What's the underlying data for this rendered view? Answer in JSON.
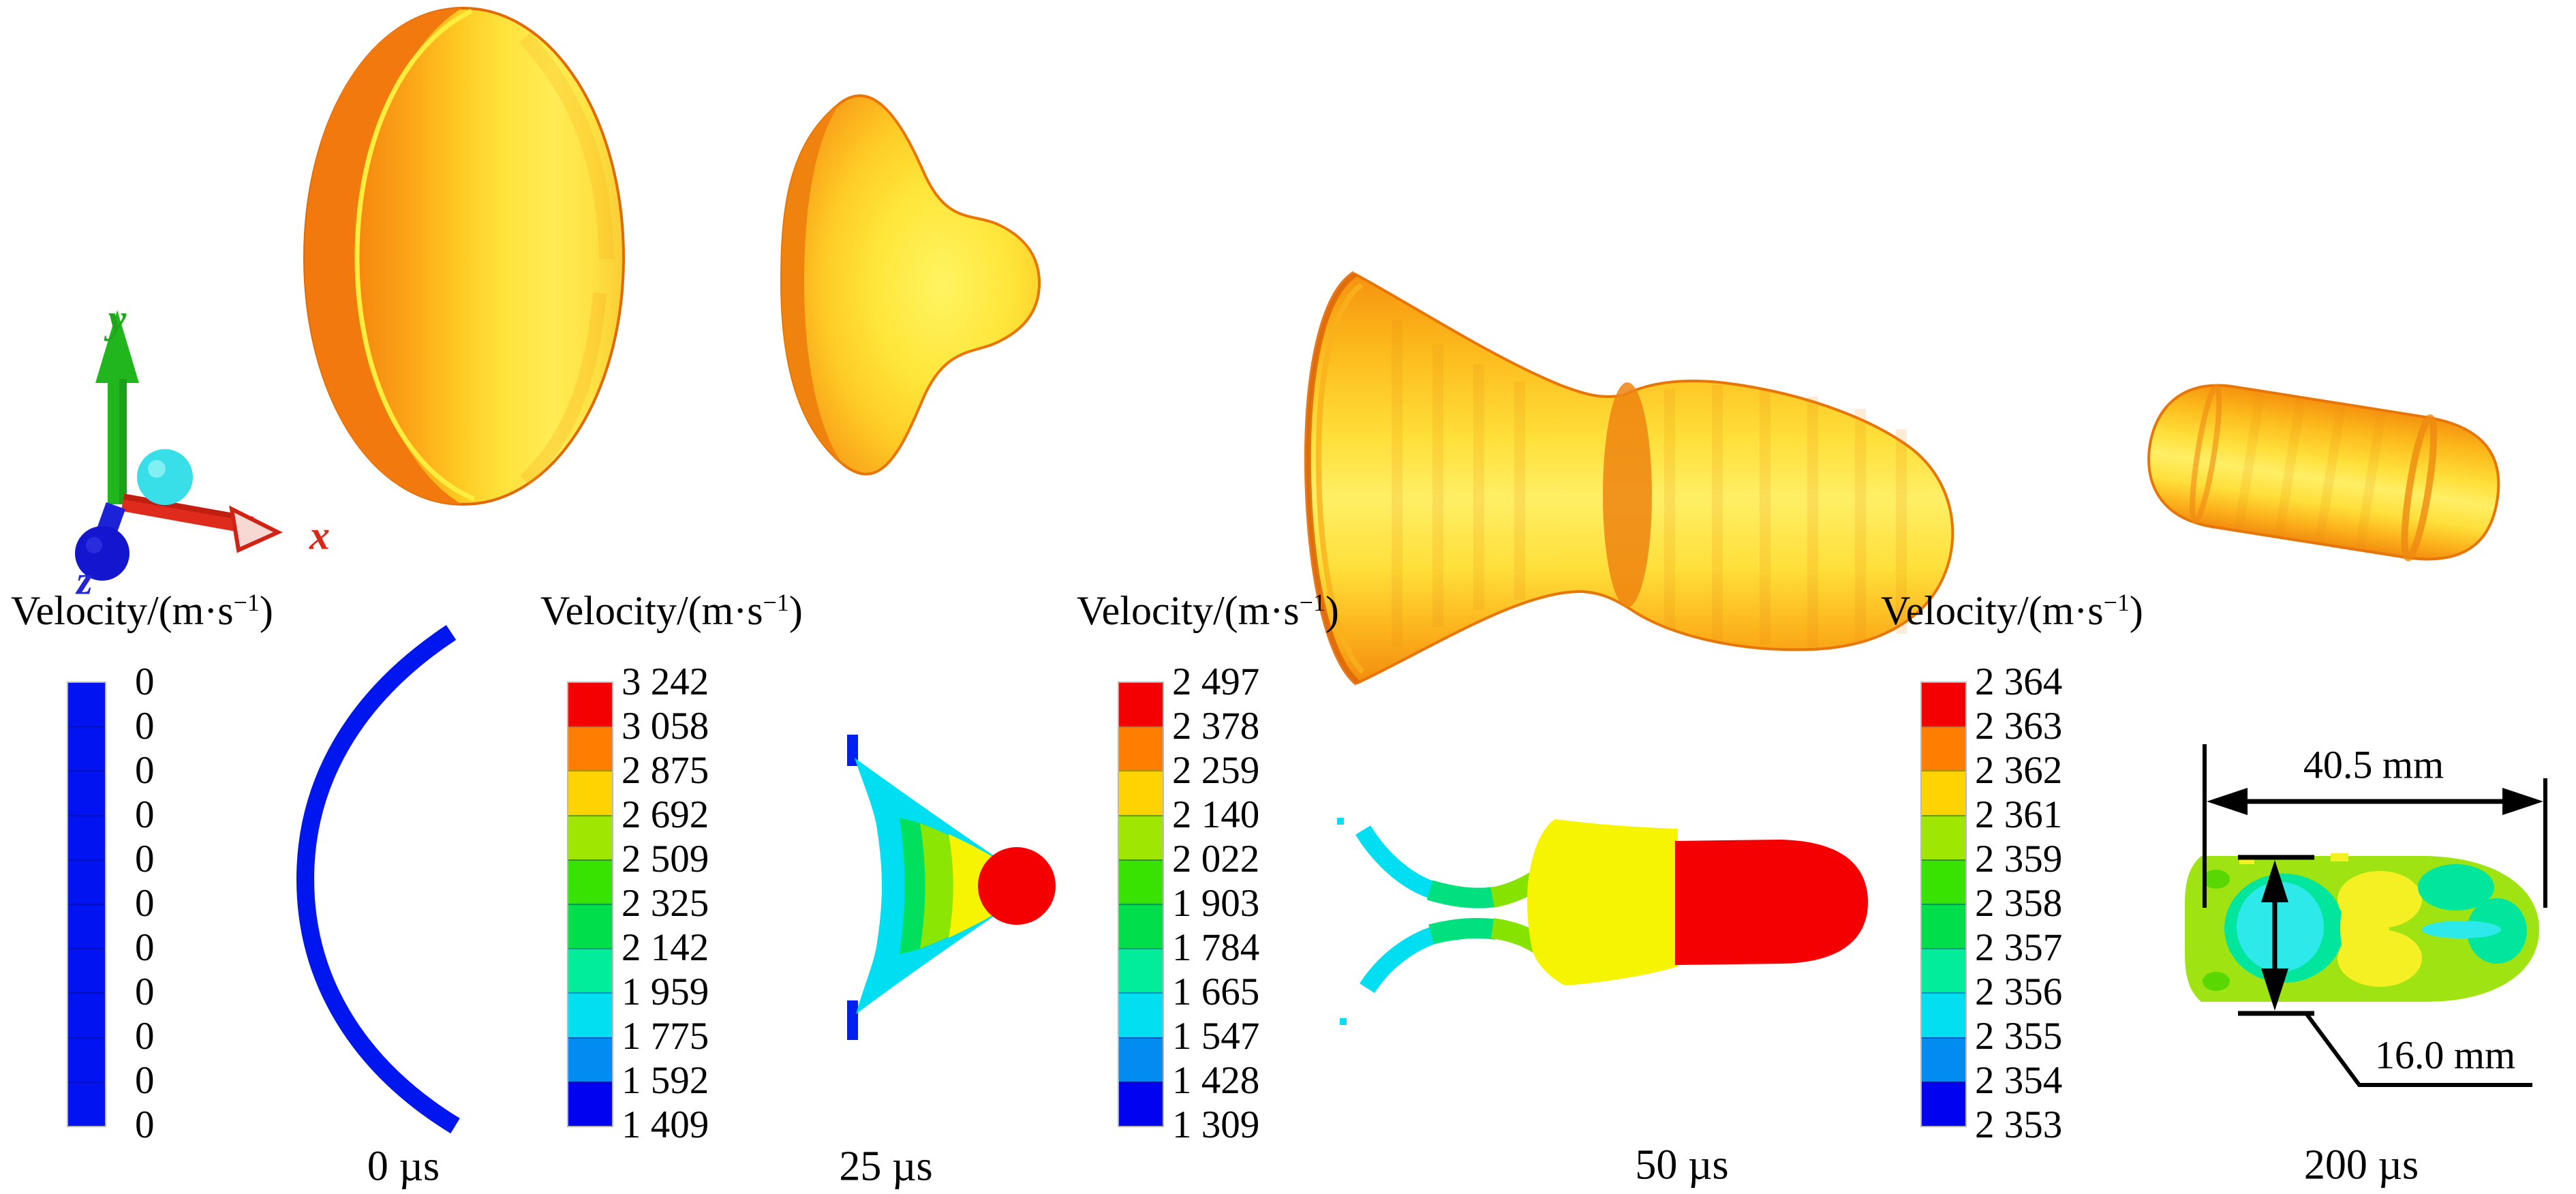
{
  "axis_triad": {
    "x": "x",
    "y": "y",
    "z": "z"
  },
  "legend_title": {
    "main": "Velocity/(m·s",
    "sup": "−1",
    "end": ")"
  },
  "panels": [
    {
      "time": "0 µs",
      "values": [
        "0",
        "0",
        "0",
        "0",
        "0",
        "0",
        "0",
        "0",
        "0",
        "0",
        "0"
      ]
    },
    {
      "time": "25 µs",
      "values": [
        "3 242",
        "3 058",
        "2 875",
        "2 692",
        "2 509",
        "2 325",
        "2 142",
        "1 959",
        "1 775",
        "1 592",
        "1 409"
      ]
    },
    {
      "time": "50 µs",
      "values": [
        "2 497",
        "2 378",
        "2 259",
        "2 140",
        "2 022",
        "1 903",
        "1 784",
        "1 665",
        "1 547",
        "1 428",
        "1 309"
      ]
    },
    {
      "time": "200 µs",
      "values": [
        "2 364",
        "2 363",
        "2 362",
        "2 361",
        "2 359",
        "2 358",
        "2 357",
        "2 356",
        "2 355",
        "2 354",
        "2 353"
      ]
    }
  ],
  "annotations": {
    "length": "40.5 mm",
    "diameter": "16.0 mm"
  },
  "palette": {
    "rainbow": [
      "#f50002",
      "#ff7d01",
      "#ffd302",
      "#9fe602",
      "#38e201",
      "#01de4c",
      "#01ec9b",
      "#01dff0",
      "#028cf2",
      "#0103f0"
    ],
    "flat_blue": "#0113f0",
    "contour_cyan": "#00dff2",
    "contour_green": "#01e05c",
    "contour_yellowgreen": "#8ce603",
    "contour_yellow": "#f7f402",
    "contour_red": "#f50002",
    "body_yellowgreen": "#9fe312",
    "axis_x_color": "#df2b1c",
    "axis_y_color": "#21b61e",
    "axis_z_color": "#1415cf",
    "origin_marker_color": "#38dfe8",
    "shape_orange": "#f9a41a",
    "shape_yellow": "#ffe94a"
  }
}
